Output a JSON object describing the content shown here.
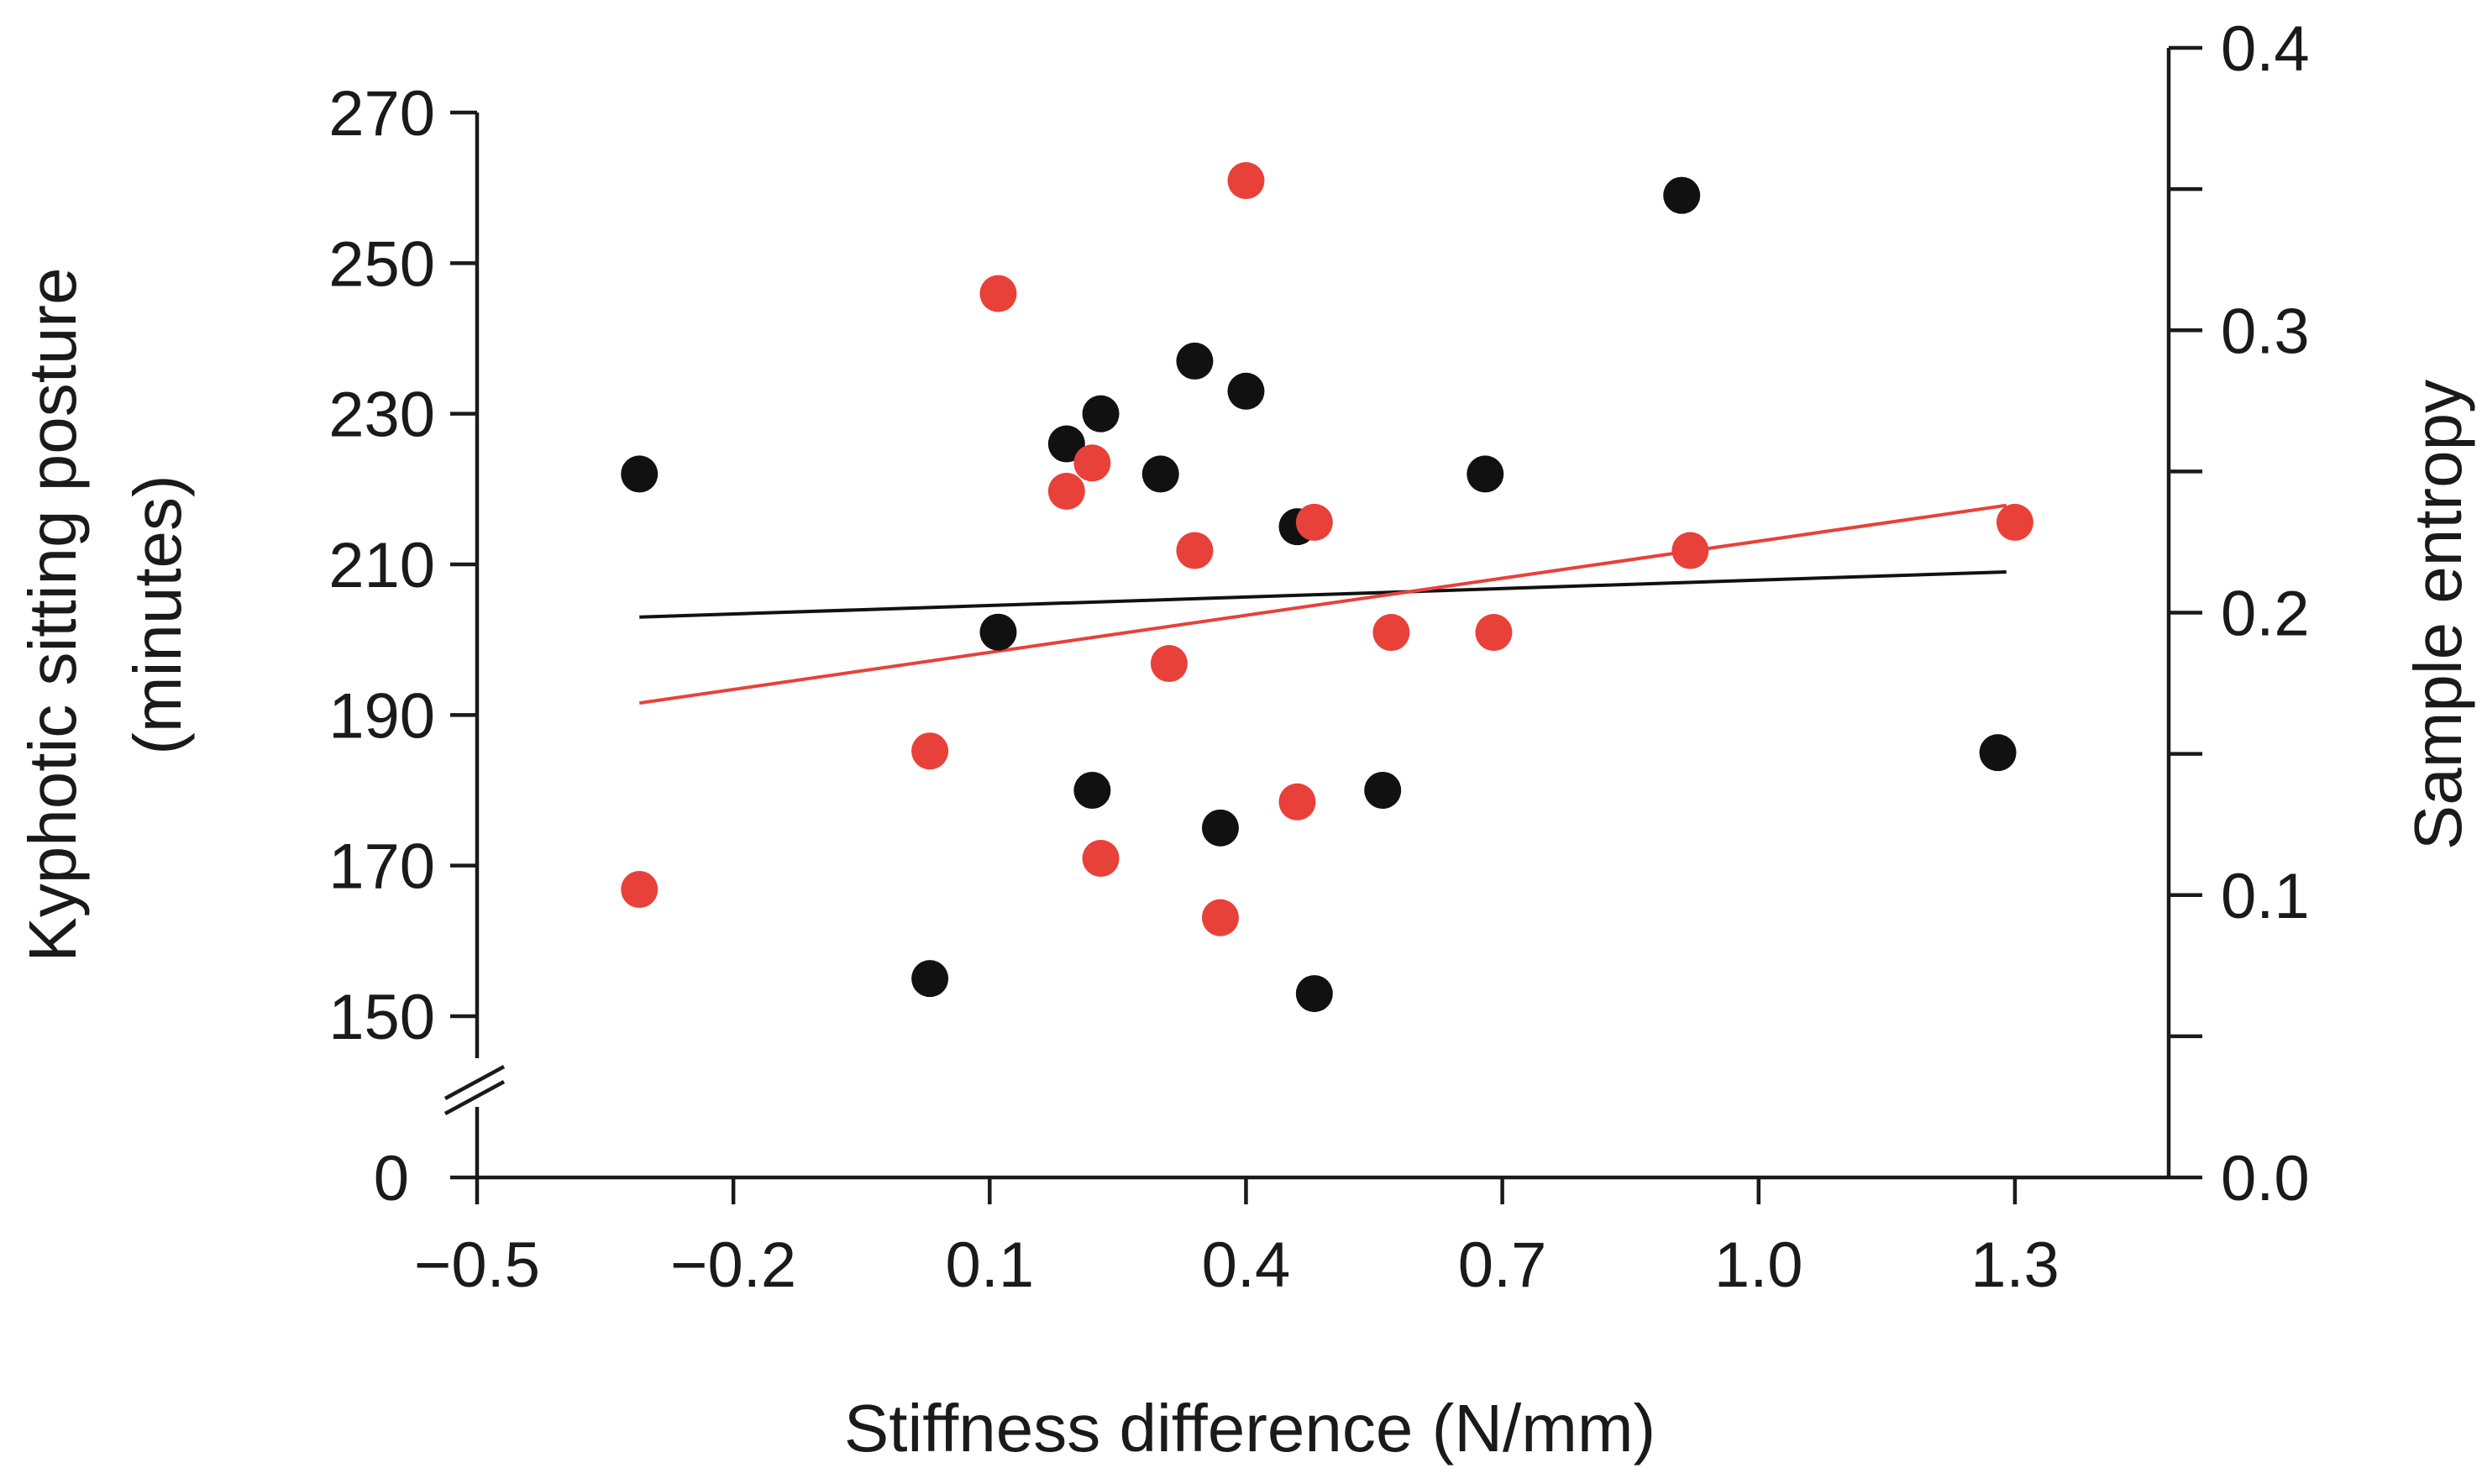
{
  "chart_data": {
    "type": "scatter",
    "xlabel": "Stiffness difference (N/mm)",
    "ylabel_left_line1": "Kyphotic sitting posture",
    "ylabel_left_line2": "(minutes)",
    "ylabel_right": "Sample entropy",
    "x_ticks": [
      "−0.5",
      "−0.2",
      "0.1",
      "0.4",
      "0.7",
      "1.0",
      "1.3"
    ],
    "x_tick_values": [
      -0.5,
      -0.2,
      0.1,
      0.4,
      0.7,
      1.0,
      1.3
    ],
    "xlim": [
      -0.5,
      1.48
    ],
    "y_left_ticks": [
      "270",
      "250",
      "230",
      "210",
      "190",
      "170",
      "150",
      "0"
    ],
    "y_left_tick_values": [
      270,
      250,
      230,
      210,
      190,
      170,
      150
    ],
    "y_left_lim": [
      150,
      270
    ],
    "y_left_zero_label": "0",
    "y_right_ticks": [
      "0.4",
      "0.3",
      "0.2",
      "0.1",
      "0.0"
    ],
    "y_right_tick_values": [
      0.4,
      0.3,
      0.2,
      0.1,
      0.0
    ],
    "y_right_minor_tick_values": [
      0.35,
      0.25,
      0.15,
      0.05
    ],
    "y_right_lim": [
      0.0,
      0.4
    ],
    "axis_break": "left y-axis break between 0 and 150",
    "series": [
      {
        "name": "Kyphotic sitting posture",
        "axis": "left",
        "color": "#111111",
        "points": [
          {
            "x": -0.31,
            "y": 222
          },
          {
            "x": 0.03,
            "y": 155
          },
          {
            "x": 0.11,
            "y": 201
          },
          {
            "x": 0.19,
            "y": 226
          },
          {
            "x": 0.22,
            "y": 180
          },
          {
            "x": 0.23,
            "y": 230
          },
          {
            "x": 0.3,
            "y": 222
          },
          {
            "x": 0.34,
            "y": 237
          },
          {
            "x": 0.37,
            "y": 175
          },
          {
            "x": 0.4,
            "y": 233
          },
          {
            "x": 0.46,
            "y": 215
          },
          {
            "x": 0.48,
            "y": 153
          },
          {
            "x": 0.56,
            "y": 180
          },
          {
            "x": 0.68,
            "y": 222
          },
          {
            "x": 0.91,
            "y": 259
          },
          {
            "x": 1.28,
            "y": 185
          }
        ],
        "trend": {
          "x1": -0.31,
          "y1": 203,
          "x2": 1.29,
          "y2": 209
        }
      },
      {
        "name": "Sample entropy",
        "axis": "right",
        "color": "#e8413a",
        "points": [
          {
            "x": -0.31,
            "y": 0.102
          },
          {
            "x": 0.03,
            "y": 0.151
          },
          {
            "x": 0.11,
            "y": 0.313
          },
          {
            "x": 0.19,
            "y": 0.243
          },
          {
            "x": 0.22,
            "y": 0.253
          },
          {
            "x": 0.23,
            "y": 0.113
          },
          {
            "x": 0.31,
            "y": 0.182
          },
          {
            "x": 0.34,
            "y": 0.222
          },
          {
            "x": 0.37,
            "y": 0.092
          },
          {
            "x": 0.4,
            "y": 0.353
          },
          {
            "x": 0.46,
            "y": 0.133
          },
          {
            "x": 0.48,
            "y": 0.232
          },
          {
            "x": 0.57,
            "y": 0.193
          },
          {
            "x": 0.69,
            "y": 0.193
          },
          {
            "x": 0.92,
            "y": 0.222
          },
          {
            "x": 1.3,
            "y": 0.232
          }
        ],
        "trend": {
          "x1": -0.31,
          "y1": 0.168,
          "x2": 1.29,
          "y2": 0.238
        }
      }
    ]
  }
}
